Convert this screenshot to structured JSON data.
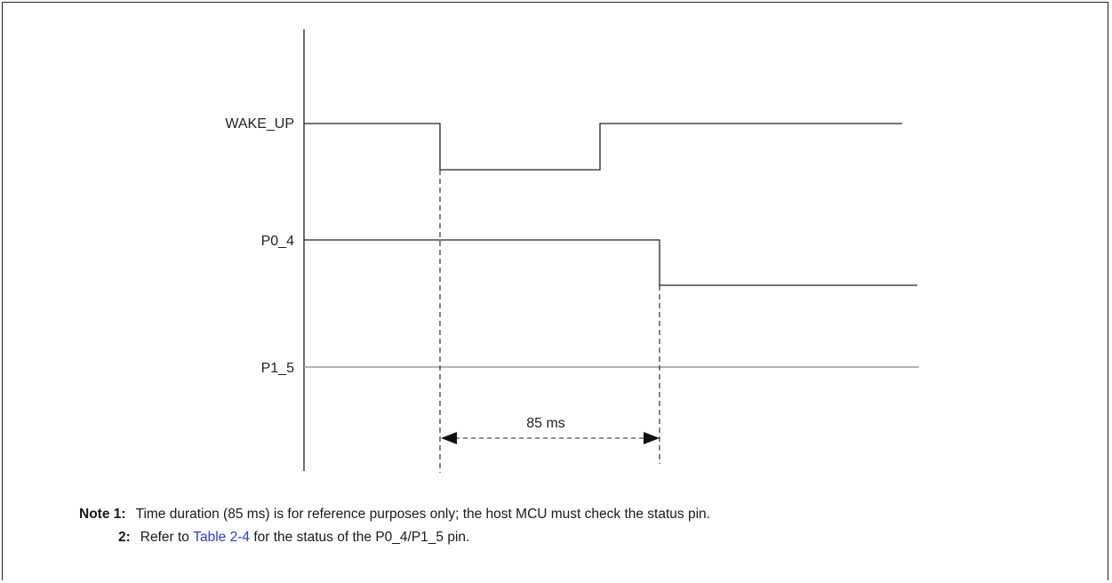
{
  "diagram": {
    "signals": [
      {
        "label": "WAKE_UP"
      },
      {
        "label": "P0_4"
      },
      {
        "label": "P1_5"
      }
    ],
    "duration_label": "85 ms"
  },
  "notes": {
    "heading": "Note",
    "items": [
      {
        "num": "1:",
        "text": "Time duration (85 ms) is for reference purposes only; the host MCU must check the status pin."
      },
      {
        "num": "2:",
        "pre": "Refer to ",
        "link": "Table 2-4",
        "post": " for the status of the P0_4/P1_5 pin."
      }
    ]
  },
  "colors": {
    "line": "#222222",
    "p1_5_line": "#9a9a9a",
    "link": "#2a3ccf"
  }
}
